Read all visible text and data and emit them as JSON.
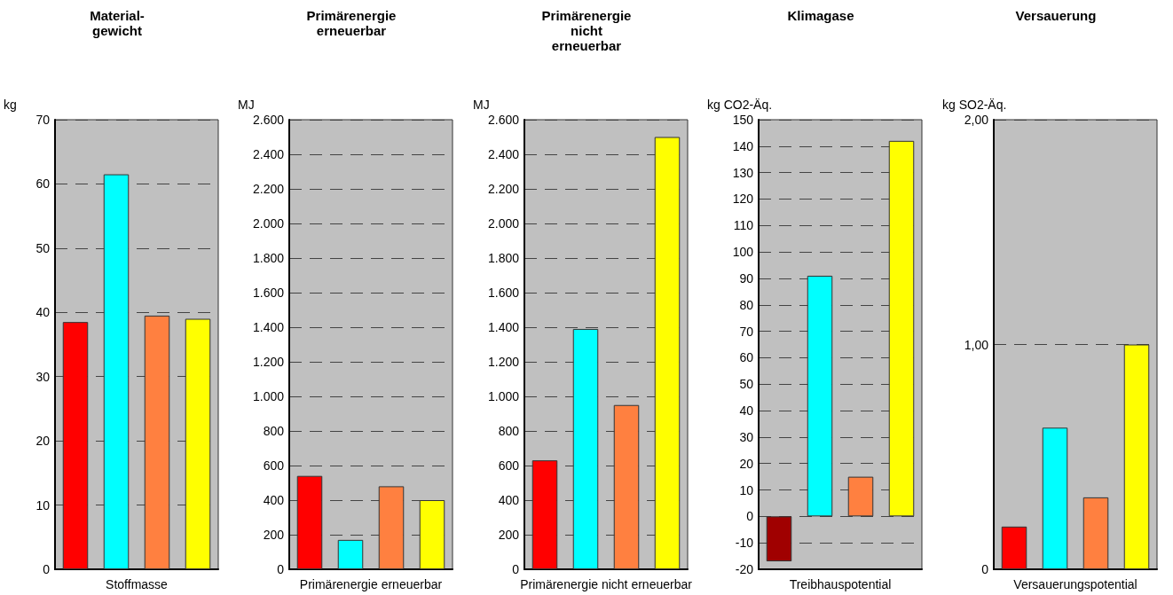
{
  "chart_data": [
    {
      "type": "bar",
      "title": "Material-\ngewicht",
      "ylabel": "kg",
      "xlabel": "Stoffmasse",
      "categories": [
        null,
        null,
        null,
        null
      ],
      "values": [
        38.5,
        61.5,
        39.5,
        39
      ],
      "colors": [
        "#ff0000",
        "#00ffff",
        "#ff8040",
        "#ffff00"
      ],
      "ylim": [
        0,
        70
      ],
      "yticks": [
        0,
        10,
        20,
        30,
        40,
        50,
        60,
        70
      ],
      "grid": "y"
    },
    {
      "type": "bar",
      "title": "Primärenergie\nerneuerbar",
      "ylabel": "MJ",
      "xlabel": "Primärenergie erneuerbar",
      "categories": [
        null,
        null,
        null,
        null
      ],
      "values": [
        540,
        170,
        480,
        400
      ],
      "colors": [
        "#ff0000",
        "#00ffff",
        "#ff8040",
        "#ffff00"
      ],
      "ylim": [
        0,
        2600
      ],
      "yticks": [
        0,
        200,
        400,
        600,
        800,
        {
          "value": 1000,
          "label": "1.000"
        },
        {
          "value": 1200,
          "label": "1.200"
        },
        {
          "value": 1400,
          "label": "1.400"
        },
        {
          "value": 1600,
          "label": "1.600"
        },
        {
          "value": 1800,
          "label": "1.800"
        },
        {
          "value": 2000,
          "label": "2.000"
        },
        {
          "value": 2200,
          "label": "2.200"
        },
        {
          "value": 2400,
          "label": "2.400"
        },
        {
          "value": 2600,
          "label": "2.600"
        }
      ],
      "grid": "y"
    },
    {
      "type": "bar",
      "title": "Primärenergie\nnicht\nerneuerbar",
      "ylabel": "MJ",
      "xlabel": "Primärenergie nicht erneuerbar",
      "categories": [
        null,
        null,
        null,
        null
      ],
      "values": [
        630,
        1390,
        950,
        2500
      ],
      "colors": [
        "#ff0000",
        "#00ffff",
        "#ff8040",
        "#ffff00"
      ],
      "ylim": [
        0,
        2600
      ],
      "yticks": [
        0,
        200,
        400,
        600,
        800,
        {
          "value": 1000,
          "label": "1.000"
        },
        {
          "value": 1200,
          "label": "1.200"
        },
        {
          "value": 1400,
          "label": "1.400"
        },
        {
          "value": 1600,
          "label": "1.600"
        },
        {
          "value": 1800,
          "label": "1.800"
        },
        {
          "value": 2000,
          "label": "2.000"
        },
        {
          "value": 2200,
          "label": "2.200"
        },
        {
          "value": 2400,
          "label": "2.400"
        },
        {
          "value": 2600,
          "label": "2.600"
        }
      ],
      "grid": "y"
    },
    {
      "type": "bar",
      "title": "Klimagase",
      "ylabel": "kg CO2-Äq.",
      "xlabel": "Treibhauspotential",
      "categories": [
        null,
        null,
        null,
        null
      ],
      "values": [
        -17,
        91,
        15,
        142
      ],
      "colors": [
        "#a00000",
        "#00ffff",
        "#ff8040",
        "#ffff00"
      ],
      "ylim": [
        -20,
        150
      ],
      "yticks": [
        -20,
        -10,
        0,
        10,
        20,
        30,
        40,
        50,
        60,
        70,
        80,
        90,
        100,
        110,
        120,
        130,
        140,
        150
      ],
      "grid": "y"
    },
    {
      "type": "bar",
      "title": "Versauerung",
      "ylabel": "kg SO2-Äq.",
      "xlabel": "Versauerungspotential",
      "categories": [
        null,
        null,
        null,
        null
      ],
      "values": [
        0.19,
        0.63,
        0.32,
        1.0
      ],
      "colors": [
        "#ff0000",
        "#00ffff",
        "#ff8040",
        "#ffff00"
      ],
      "ylim": [
        0,
        2
      ],
      "yticks": [
        0,
        {
          "value": 1,
          "label": "1,00"
        },
        {
          "value": 2,
          "label": "2,00"
        }
      ],
      "grid": "y"
    }
  ]
}
